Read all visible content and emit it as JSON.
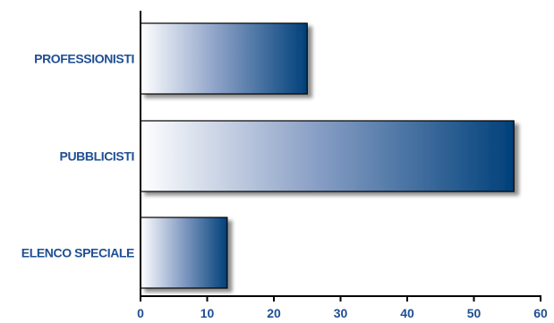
{
  "chart_data": {
    "type": "bar",
    "orientation": "horizontal",
    "categories": [
      "PROFESSIONISTI",
      "PUBBLICISTI",
      "ELENCO SPECIALE"
    ],
    "values": [
      25,
      56,
      13
    ],
    "xlim": [
      0,
      60
    ],
    "xticks": [
      "0",
      "10",
      "20",
      "30",
      "40",
      "50",
      "60"
    ],
    "title": "",
    "xlabel": "",
    "ylabel": "",
    "grid": false,
    "legend": "none",
    "colors": {
      "label": "#1f4f93",
      "bar_light": "#ffffff",
      "bar_mid": "#8ea3c8",
      "bar_dark": "#00407a",
      "axis": "#000000",
      "shadow": "#9a9a9a"
    }
  }
}
